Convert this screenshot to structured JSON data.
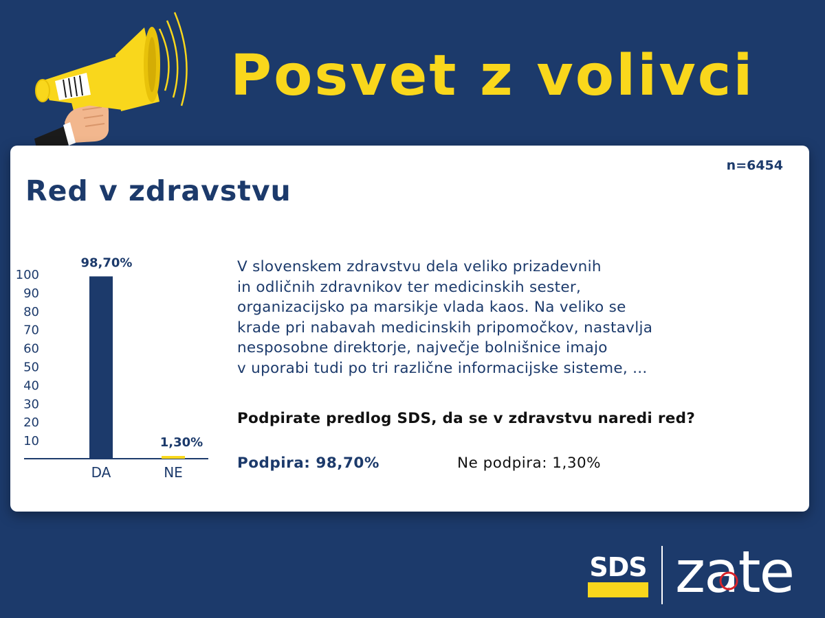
{
  "header": {
    "title": "Posvet z volivci"
  },
  "card": {
    "sample_size": "n=6454",
    "title": "Red v zdravstvu",
    "paragraph_lines": [
      "V slovenskem zdravstvu dela veliko prizadevnih",
      "in odličnih zdravnikov ter medicinskih sester,",
      "organizacijsko pa marsikje vlada kaos. Na veliko se",
      "krade pri nabavah medicinskih pripomočkov, nastavlja",
      "nesposobne direktorje, največje bolnišnice imajo",
      "v uporabi tudi po tri različne informacijske sisteme, ..."
    ],
    "question": "Podpirate predlog SDS, da se v zdravstvu naredi red?",
    "yes_result": "Podpira: 98,70%",
    "no_result": "Ne podpira: 1,30%"
  },
  "chart_data": {
    "type": "bar",
    "categories": [
      "DA",
      "NE"
    ],
    "values": [
      98.7,
      1.3
    ],
    "data_labels": [
      "98,70%",
      "1,30%"
    ],
    "bar_colors": [
      "#1c3a6b",
      "#f9d71c"
    ],
    "yticks": [
      10,
      20,
      30,
      40,
      50,
      60,
      70,
      80,
      90,
      100
    ],
    "ylim": [
      0,
      100
    ],
    "grid": false,
    "title": "",
    "xlabel": "",
    "ylabel": ""
  },
  "logos": {
    "party": "SDS",
    "brand": "zate"
  },
  "colors": {
    "background": "#1c3a6b",
    "accent": "#f9d71c",
    "card": "#ffffff"
  }
}
